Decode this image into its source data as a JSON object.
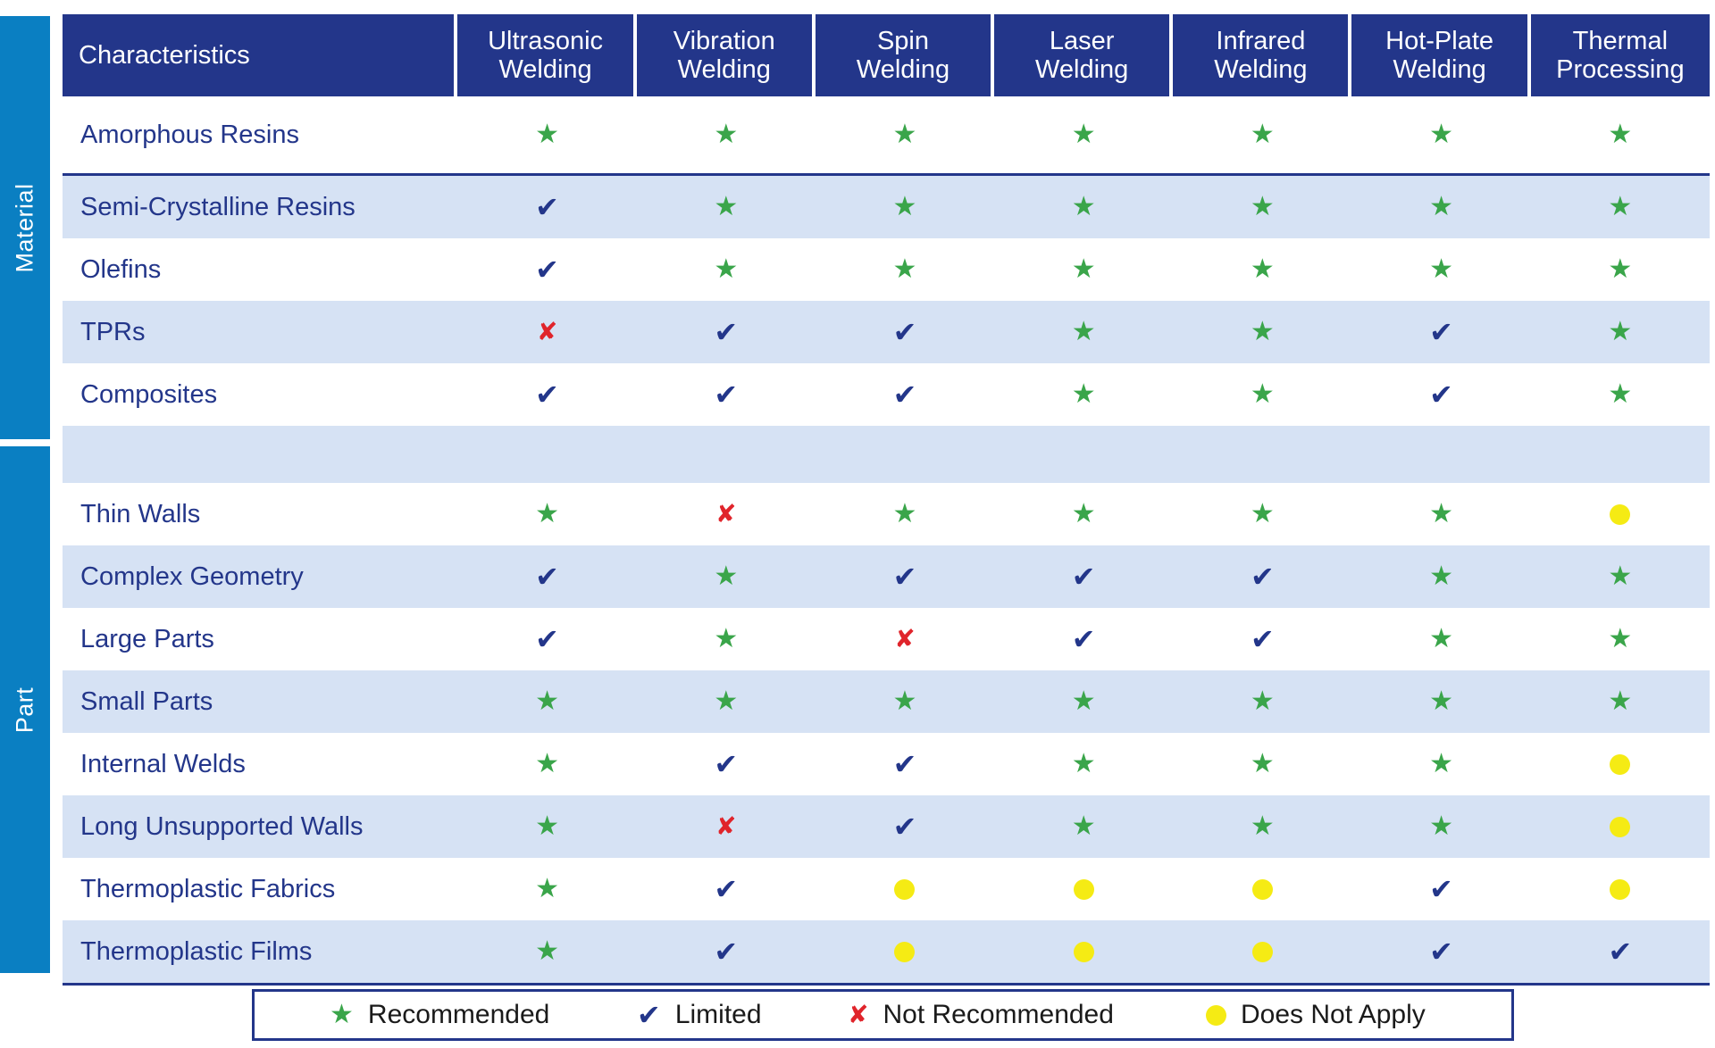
{
  "sections": {
    "material": "Material",
    "part": "Part"
  },
  "header": {
    "characteristics": "Characteristics",
    "methods": [
      [
        "Ultrasonic",
        "Welding"
      ],
      [
        "Vibration",
        "Welding"
      ],
      [
        "Spin",
        "Welding"
      ],
      [
        "Laser",
        "Welding"
      ],
      [
        "Infrared",
        "Welding"
      ],
      [
        "Hot-Plate",
        "Welding"
      ],
      [
        "Thermal",
        "Processing"
      ]
    ]
  },
  "symbols": {
    "star": "★",
    "check": "✔",
    "x": "✘"
  },
  "rows": [
    {
      "section": "material",
      "label": "Amorphous Resins",
      "cells": [
        "star",
        "star",
        "star",
        "star",
        "star",
        "star",
        "star"
      ]
    },
    {
      "section": "material",
      "label": "Semi-Crystalline Resins",
      "cells": [
        "check",
        "star",
        "star",
        "star",
        "star",
        "star",
        "star"
      ]
    },
    {
      "section": "material",
      "label": "Olefins",
      "cells": [
        "check",
        "star",
        "star",
        "star",
        "star",
        "star",
        "star"
      ]
    },
    {
      "section": "material",
      "label": "TPRs",
      "cells": [
        "x",
        "check",
        "check",
        "star",
        "star",
        "check",
        "star"
      ]
    },
    {
      "section": "material",
      "label": "Composites",
      "cells": [
        "check",
        "check",
        "check",
        "star",
        "star",
        "check",
        "star"
      ]
    },
    {
      "section": "spacer",
      "label": "",
      "cells": []
    },
    {
      "section": "part",
      "label": "Thin Walls",
      "cells": [
        "star",
        "x",
        "star",
        "star",
        "star",
        "star",
        "dot"
      ]
    },
    {
      "section": "part",
      "label": "Complex Geometry",
      "cells": [
        "check",
        "star",
        "check",
        "check",
        "check",
        "star",
        "star"
      ]
    },
    {
      "section": "part",
      "label": "Large Parts",
      "cells": [
        "check",
        "star",
        "x",
        "check",
        "check",
        "star",
        "star"
      ]
    },
    {
      "section": "part",
      "label": "Small Parts",
      "cells": [
        "star",
        "star",
        "star",
        "star",
        "star",
        "star",
        "star"
      ]
    },
    {
      "section": "part",
      "label": "Internal Welds",
      "cells": [
        "star",
        "check",
        "check",
        "star",
        "star",
        "star",
        "dot"
      ]
    },
    {
      "section": "part",
      "label": "Long Unsupported Walls",
      "cells": [
        "star",
        "x",
        "check",
        "star",
        "star",
        "star",
        "dot"
      ]
    },
    {
      "section": "part",
      "label": "Thermoplastic Fabrics",
      "cells": [
        "star",
        "check",
        "dot",
        "dot",
        "dot",
        "check",
        "dot"
      ]
    },
    {
      "section": "part",
      "label": "Thermoplastic Films",
      "cells": [
        "star",
        "check",
        "dot",
        "dot",
        "dot",
        "check",
        "check"
      ]
    }
  ],
  "legend": [
    {
      "symbol": "star",
      "label": "Recommended"
    },
    {
      "symbol": "check",
      "label": "Limited"
    },
    {
      "symbol": "x",
      "label": "Not Recommended"
    },
    {
      "symbol": "dot",
      "label": "Does Not Apply"
    }
  ],
  "colors": {
    "header_bg": "#23368a",
    "side_bg": "#0a7fc2",
    "alt_row_bg": "#d6e2f4",
    "star": "#3aa54a",
    "check": "#23368a",
    "x": "#e0242b",
    "dot": "#f5eb14"
  }
}
